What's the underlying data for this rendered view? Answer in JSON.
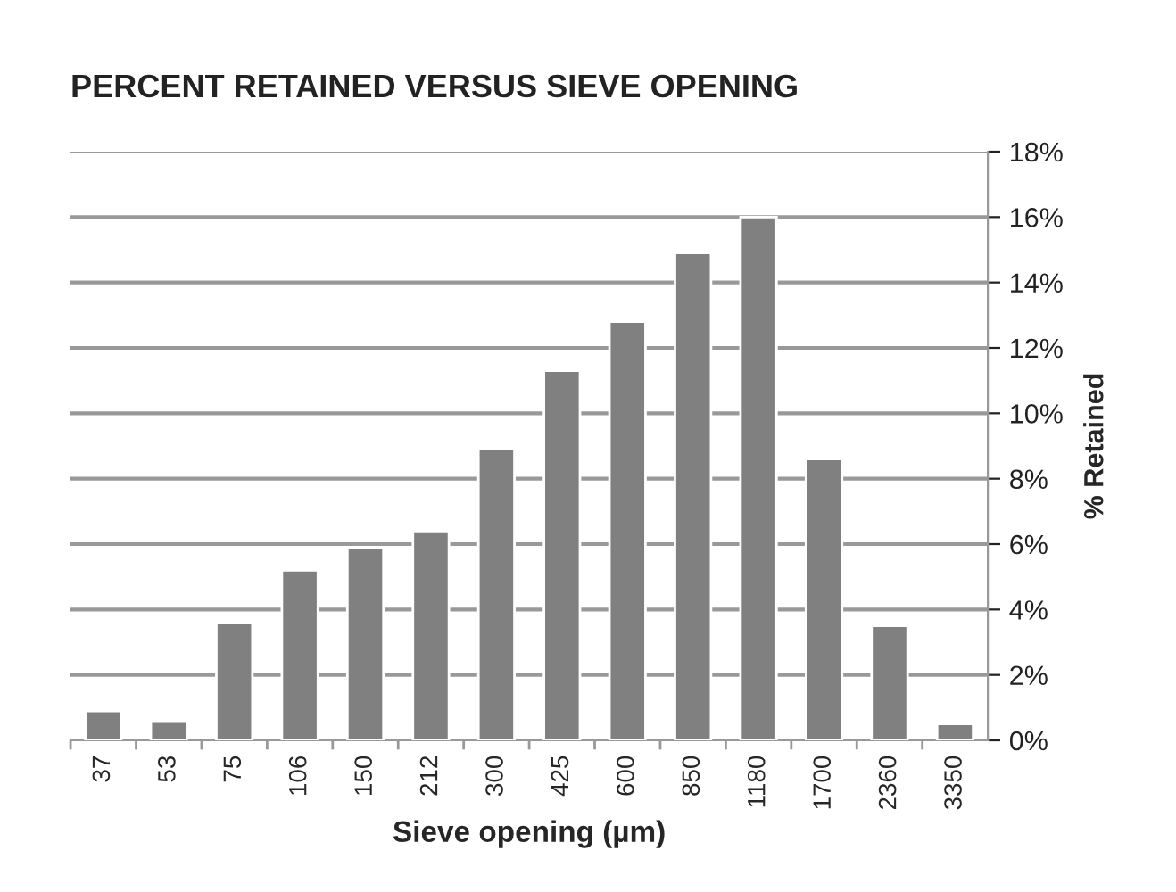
{
  "chart_data": {
    "type": "bar",
    "title": "PERCENT RETAINED VERSUS SIEVE OPENING",
    "xlabel": "Sieve opening (µm)",
    "ylabel": "% Retained",
    "categories": [
      "37",
      "53",
      "75",
      "106",
      "150",
      "212",
      "300",
      "425",
      "600",
      "850",
      "1180",
      "1700",
      "2360",
      "3350"
    ],
    "values": [
      0.9,
      0.6,
      3.6,
      5.2,
      5.9,
      6.4,
      8.9,
      11.3,
      12.8,
      14.9,
      16.0,
      8.6,
      3.5,
      0.5
    ],
    "color": "#808080",
    "ylim": [
      0,
      18
    ],
    "yticks": [
      {
        "value": 0,
        "label": "0%"
      },
      {
        "value": 2,
        "label": "2%"
      },
      {
        "value": 4,
        "label": "4%"
      },
      {
        "value": 6,
        "label": "6%"
      },
      {
        "value": 8,
        "label": "8%"
      },
      {
        "value": 10,
        "label": "10%"
      },
      {
        "value": 12,
        "label": "12%"
      },
      {
        "value": 14,
        "label": "14%"
      },
      {
        "value": 16,
        "label": "16%"
      },
      {
        "value": 18,
        "label": "18%"
      }
    ],
    "grid": "y",
    "legend": false
  }
}
